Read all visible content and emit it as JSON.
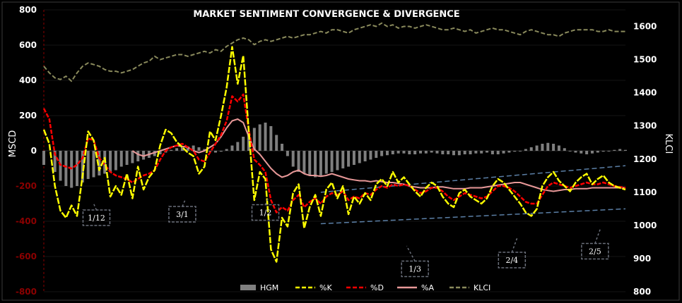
{
  "chart_data": {
    "type": "line",
    "title": "MARKET SENTIMENT CONVERGENCE & DIVERGENCE",
    "ylabel": "MSCD",
    "y2label": "KLCI",
    "ylim": [
      -800,
      800
    ],
    "y2lim": [
      800,
      1650
    ],
    "yticks": [
      {
        "v": 800,
        "label": "800",
        "color": "#ffffff"
      },
      {
        "v": 600,
        "label": "600",
        "color": "#ffffff"
      },
      {
        "v": 400,
        "label": "400",
        "color": "#ffffff"
      },
      {
        "v": 200,
        "label": "200",
        "color": "#ffffff"
      },
      {
        "v": 0,
        "label": "0",
        "color": "#ffffff"
      },
      {
        "v": -200,
        "label": "-200",
        "color": "#8b0000"
      },
      {
        "v": -400,
        "label": "-400",
        "color": "#8b0000"
      },
      {
        "v": -600,
        "label": "-600",
        "color": "#8b0000"
      },
      {
        "v": -800,
        "label": "-800",
        "color": "#8b0000"
      }
    ],
    "y2ticks": [
      {
        "v": 1600,
        "label": "1600"
      },
      {
        "v": 1500,
        "label": "1500"
      },
      {
        "v": 1400,
        "label": "1400"
      },
      {
        "v": 1300,
        "label": "1300"
      },
      {
        "v": 1200,
        "label": "1200"
      },
      {
        "v": 1100,
        "label": "1100"
      },
      {
        "v": 1000,
        "label": "1000"
      },
      {
        "v": 900,
        "label": "900"
      },
      {
        "v": 800,
        "label": "800"
      }
    ],
    "legend_position": "bottom",
    "colors": {
      "HGM": "#7f7f7f",
      "%K": "#ffff00",
      "%D": "#ff0000",
      "%A": "#e89898",
      "KLCI": "#8a8a5c",
      "trend": "#5b7fa6",
      "ann_box": "#6a6f7a"
    },
    "series": [
      {
        "name": "HGM",
        "kind": "bar",
        "x": [
          0,
          8,
          12,
          16,
          20,
          24,
          28,
          32,
          36,
          40,
          44,
          48,
          52,
          56,
          60,
          64,
          68,
          72,
          76,
          80,
          84,
          88,
          92,
          96,
          100,
          104,
          108,
          112,
          116,
          120,
          124,
          128,
          132,
          136,
          140,
          144,
          148,
          152,
          156,
          160,
          164,
          168,
          172,
          176,
          180,
          184,
          188,
          192,
          196,
          200,
          204,
          208,
          212,
          216,
          220,
          224,
          228,
          232,
          236,
          240,
          244,
          248,
          252,
          256,
          260,
          264,
          268,
          272,
          276,
          280,
          284,
          288,
          292,
          296,
          300,
          304,
          308,
          312,
          316,
          320,
          324,
          328,
          332,
          336,
          340,
          344,
          348,
          352,
          356,
          360,
          364,
          368,
          372,
          376,
          380,
          384,
          388,
          392,
          396,
          400,
          404,
          408,
          412,
          416,
          420
        ],
        "values": [
          -80,
          -120,
          -170,
          -200,
          -210,
          -200,
          -180,
          -160,
          -150,
          -140,
          -130,
          -120,
          -110,
          -90,
          -80,
          -70,
          -60,
          -50,
          -40,
          -30,
          -20,
          -10,
          5,
          15,
          20,
          25,
          30,
          20,
          10,
          -5,
          -10,
          -5,
          10,
          30,
          50,
          80,
          110,
          130,
          150,
          160,
          140,
          90,
          40,
          -30,
          -90,
          -120,
          -130,
          -140,
          -150,
          -140,
          -130,
          -120,
          -110,
          -100,
          -90,
          -80,
          -70,
          -60,
          -50,
          -40,
          -30,
          -25,
          -20,
          -15,
          -15,
          -20,
          -20,
          -15,
          -15,
          -10,
          -15,
          -20,
          -20,
          -25,
          -25,
          -20,
          -20,
          -15,
          -15,
          -10,
          -20,
          -20,
          -15,
          -10,
          -5,
          0,
          10,
          20,
          30,
          40,
          45,
          40,
          30,
          15,
          0,
          -10,
          -15,
          -20,
          -15,
          -10,
          -5,
          0,
          5,
          10,
          5
        ]
      },
      {
        "name": "%K",
        "kind": "line",
        "x": [
          0,
          4,
          8,
          12,
          16,
          20,
          24,
          28,
          32,
          36,
          40,
          44,
          48,
          52,
          56,
          60,
          64,
          68,
          72,
          76,
          80,
          84,
          88,
          92,
          96,
          100,
          104,
          108,
          112,
          116,
          120,
          124,
          128,
          132,
          136,
          140,
          144,
          148,
          152,
          156,
          160,
          164,
          168,
          172,
          176,
          180,
          184,
          188,
          192,
          196,
          200,
          204,
          208,
          212,
          216,
          220,
          224,
          228,
          232,
          236,
          240,
          244,
          248,
          252,
          256,
          260,
          264,
          268,
          272,
          276,
          280,
          284,
          288,
          292,
          296,
          300,
          304,
          308,
          312,
          316,
          320,
          324,
          328,
          332,
          336,
          340,
          344,
          348,
          352,
          356,
          360,
          364,
          368,
          372,
          376,
          380,
          384,
          388,
          392,
          396,
          400,
          404,
          408,
          412,
          416,
          420
        ],
        "values": [
          120,
          40,
          -200,
          -340,
          -380,
          -310,
          -370,
          -140,
          110,
          60,
          -110,
          -40,
          -260,
          -200,
          -250,
          -130,
          -270,
          -90,
          -220,
          -150,
          -110,
          30,
          120,
          100,
          50,
          20,
          -10,
          -30,
          -130,
          -90,
          110,
          60,
          200,
          360,
          590,
          380,
          540,
          110,
          -280,
          -120,
          -160,
          -560,
          -630,
          -380,
          -430,
          -240,
          -190,
          -440,
          -320,
          -250,
          -370,
          -220,
          -180,
          -270,
          -200,
          -360,
          -260,
          -300,
          -240,
          -280,
          -190,
          -160,
          -200,
          -120,
          -180,
          -150,
          -190,
          -230,
          -260,
          -210,
          -180,
          -200,
          -260,
          -300,
          -320,
          -240,
          -220,
          -260,
          -280,
          -300,
          -270,
          -200,
          -160,
          -180,
          -220,
          -260,
          -300,
          -350,
          -370,
          -330,
          -200,
          -150,
          -120,
          -170,
          -200,
          -230,
          -180,
          -150,
          -130,
          -190,
          -160,
          -140,
          -180,
          -200,
          -210,
          -220
        ]
      },
      {
        "name": "%D",
        "kind": "line",
        "x": [
          0,
          4,
          8,
          12,
          16,
          20,
          24,
          28,
          32,
          36,
          40,
          44,
          48,
          52,
          56,
          60,
          64,
          68,
          72,
          76,
          80,
          84,
          88,
          92,
          96,
          100,
          104,
          108,
          112,
          116,
          120,
          124,
          128,
          132,
          136,
          140,
          144,
          148,
          152,
          156,
          160,
          164,
          168,
          172,
          176,
          180,
          184,
          188,
          192,
          196,
          200,
          204,
          208,
          212,
          216,
          220,
          224,
          228,
          232,
          236,
          240,
          244,
          248,
          252,
          256,
          260,
          264,
          268,
          272,
          276,
          280,
          284,
          288,
          292,
          296,
          300,
          304,
          308,
          312,
          316,
          320,
          324,
          328,
          332,
          336,
          340,
          344,
          348,
          352,
          356,
          360,
          364,
          368,
          372,
          376,
          380,
          384,
          388,
          392,
          396,
          400,
          404,
          408,
          412,
          416,
          420
        ],
        "values": [
          240,
          180,
          -20,
          -80,
          -90,
          -100,
          -80,
          -40,
          70,
          60,
          -40,
          -80,
          -120,
          -140,
          -150,
          -160,
          -180,
          -160,
          -140,
          -130,
          -110,
          -50,
          0,
          20,
          30,
          40,
          20,
          0,
          -50,
          -60,
          -10,
          40,
          90,
          170,
          310,
          280,
          320,
          120,
          -50,
          -80,
          -120,
          -280,
          -350,
          -320,
          -340,
          -280,
          -250,
          -320,
          -290,
          -270,
          -300,
          -260,
          -240,
          -250,
          -230,
          -280,
          -260,
          -270,
          -240,
          -250,
          -220,
          -200,
          -210,
          -190,
          -200,
          -190,
          -200,
          -220,
          -240,
          -230,
          -210,
          -210,
          -230,
          -260,
          -280,
          -260,
          -240,
          -250,
          -260,
          -270,
          -260,
          -230,
          -200,
          -200,
          -210,
          -230,
          -260,
          -290,
          -300,
          -300,
          -250,
          -200,
          -180,
          -190,
          -200,
          -210,
          -200,
          -190,
          -180,
          -190,
          -190,
          -180,
          -190,
          -200,
          -205,
          -210
        ]
      },
      {
        "name": "%A",
        "kind": "line",
        "x": [
          64,
          68,
          72,
          76,
          80,
          84,
          88,
          92,
          96,
          100,
          104,
          108,
          112,
          116,
          120,
          124,
          128,
          132,
          136,
          140,
          144,
          148,
          152,
          156,
          160,
          164,
          168,
          172,
          176,
          180,
          184,
          188,
          192,
          196,
          200,
          204,
          208,
          212,
          216,
          220,
          224,
          228,
          232,
          236,
          240,
          244,
          248,
          252,
          256,
          260,
          264,
          268,
          272,
          276,
          280,
          284,
          288,
          292,
          296,
          300,
          304,
          308,
          312,
          316,
          320,
          324,
          328,
          332,
          336,
          340,
          344,
          348,
          352,
          356,
          360,
          364,
          368,
          372,
          376,
          380,
          384,
          388,
          392,
          396,
          400,
          404,
          408,
          412,
          416,
          420
        ],
        "values": [
          0,
          -20,
          -30,
          -20,
          -10,
          0,
          10,
          20,
          30,
          25,
          20,
          0,
          -10,
          0,
          20,
          40,
          80,
          130,
          170,
          180,
          160,
          80,
          10,
          -20,
          -60,
          -100,
          -130,
          -150,
          -140,
          -120,
          -110,
          -130,
          -140,
          -140,
          -145,
          -140,
          -130,
          -140,
          -150,
          -160,
          -165,
          -170,
          -170,
          -175,
          -170,
          -175,
          -180,
          -180,
          -185,
          -190,
          -200,
          -205,
          -210,
          -210,
          -210,
          -205,
          -205,
          -210,
          -215,
          -215,
          -215,
          -210,
          -210,
          -210,
          -205,
          -200,
          -195,
          -190,
          -185,
          -180,
          -180,
          -190,
          -200,
          -210,
          -220,
          -225,
          -230,
          -225,
          -220,
          -220,
          -215,
          -215,
          -215,
          -210,
          -210,
          -210,
          -210,
          -210,
          -210,
          -210
        ]
      },
      {
        "name": "KLCI",
        "kind": "line",
        "axis": "right",
        "x": [
          0,
          4,
          8,
          12,
          16,
          20,
          24,
          28,
          32,
          36,
          40,
          44,
          48,
          52,
          56,
          60,
          64,
          68,
          72,
          76,
          80,
          84,
          88,
          92,
          96,
          100,
          104,
          108,
          112,
          116,
          120,
          124,
          128,
          132,
          136,
          140,
          144,
          148,
          152,
          156,
          160,
          164,
          168,
          172,
          176,
          180,
          184,
          188,
          192,
          196,
          200,
          204,
          208,
          212,
          216,
          220,
          224,
          228,
          232,
          236,
          240,
          244,
          248,
          252,
          256,
          260,
          264,
          268,
          272,
          276,
          280,
          284,
          288,
          292,
          296,
          300,
          304,
          308,
          312,
          316,
          320,
          324,
          328,
          332,
          336,
          340,
          344,
          348,
          352,
          356,
          360,
          364,
          368,
          372,
          376,
          380,
          384,
          388,
          392,
          396,
          400,
          404,
          408,
          412,
          416,
          420
        ],
        "values": [
          1480,
          1460,
          1445,
          1440,
          1450,
          1435,
          1460,
          1480,
          1490,
          1485,
          1480,
          1470,
          1465,
          1465,
          1460,
          1465,
          1470,
          1480,
          1490,
          1495,
          1510,
          1500,
          1505,
          1510,
          1515,
          1515,
          1510,
          1515,
          1520,
          1525,
          1520,
          1530,
          1525,
          1540,
          1550,
          1560,
          1565,
          1560,
          1545,
          1555,
          1560,
          1555,
          1560,
          1565,
          1570,
          1565,
          1570,
          1575,
          1575,
          1580,
          1585,
          1580,
          1590,
          1590,
          1585,
          1580,
          1590,
          1595,
          1600,
          1605,
          1600,
          1610,
          1600,
          1605,
          1595,
          1600,
          1600,
          1595,
          1600,
          1605,
          1600,
          1595,
          1590,
          1590,
          1595,
          1590,
          1585,
          1590,
          1580,
          1585,
          1590,
          1595,
          1590,
          1590,
          1585,
          1580,
          1575,
          1585,
          1590,
          1585,
          1580,
          1575,
          1575,
          1570,
          1580,
          1585,
          1590,
          1590,
          1590,
          1590,
          1585,
          1585,
          1590,
          1585,
          1585,
          1585
        ]
      }
    ],
    "trendlines": [
      {
        "axis": "right",
        "x": [
          200,
          420
        ],
        "y": [
          1100,
          1180
        ]
      },
      {
        "axis": "right",
        "x": [
          200,
          420
        ],
        "y": [
          1005,
          1050
        ]
      }
    ],
    "annotations": [
      {
        "label": "1/12",
        "box": [
          38,
          -380
        ],
        "tip": [
          36,
          -300
        ]
      },
      {
        "label": "3/1",
        "box": [
          100,
          -360
        ],
        "tip": [
          102,
          -280
        ]
      },
      {
        "label": "1/2",
        "box": [
          160,
          -350
        ],
        "tip": [
          162,
          -270
        ]
      },
      {
        "label": "1/3",
        "box": [
          268,
          -670
        ],
        "tip": [
          262,
          -540
        ]
      },
      {
        "label": "2/4",
        "box": [
          338,
          -620
        ],
        "tip": [
          342,
          -490
        ]
      },
      {
        "label": "2/5",
        "box": [
          398,
          -570
        ],
        "tip": [
          402,
          -440
        ]
      }
    ]
  }
}
